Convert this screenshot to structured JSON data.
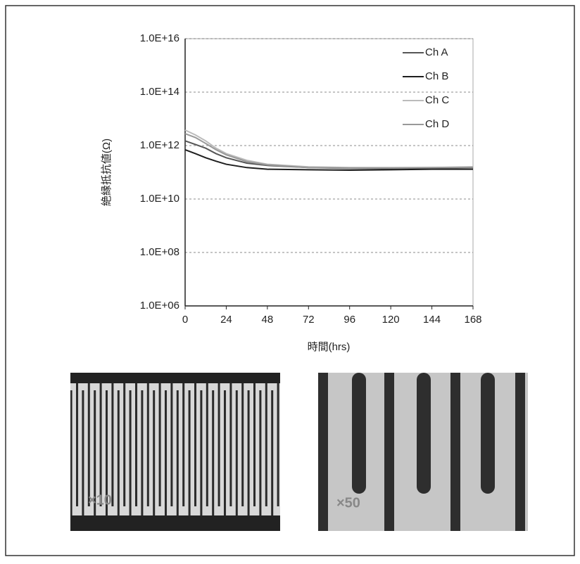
{
  "chart_data": {
    "type": "line",
    "y_label": "絶縁抵抗値(Ω)",
    "x_label": "時間(hrs)",
    "x": [
      0,
      6,
      12,
      18,
      24,
      36,
      48,
      72,
      96,
      120,
      144,
      168
    ],
    "series": [
      {
        "name": "Ch A",
        "color": "#555555",
        "values": [
          1500000000000.0,
          1100000000000.0,
          800000000000.0,
          500000000000.0,
          350000000000.0,
          220000000000.0,
          180000000000.0,
          150000000000.0,
          140000000000.0,
          140000000000.0,
          145000000000.0,
          150000000000.0
        ]
      },
      {
        "name": "Ch B",
        "color": "#1e1e1e",
        "values": [
          700000000000.0,
          500000000000.0,
          350000000000.0,
          260000000000.0,
          200000000000.0,
          150000000000.0,
          130000000000.0,
          125000000000.0,
          120000000000.0,
          125000000000.0,
          130000000000.0,
          130000000000.0
        ]
      },
      {
        "name": "Ch C",
        "color": "#bbbbbb",
        "values": [
          3800000000000.0,
          2500000000000.0,
          1500000000000.0,
          800000000000.0,
          500000000000.0,
          280000000000.0,
          200000000000.0,
          160000000000.0,
          150000000000.0,
          150000000000.0,
          150000000000.0,
          160000000000.0
        ]
      },
      {
        "name": "Ch D",
        "color": "#999999",
        "values": [
          2800000000000.0,
          2000000000000.0,
          1200000000000.0,
          700000000000.0,
          450000000000.0,
          250000000000.0,
          190000000000.0,
          150000000000.0,
          145000000000.0,
          145000000000.0,
          150000000000.0,
          155000000000.0
        ]
      }
    ],
    "xlim": [
      0,
      168
    ],
    "xticks": [
      0,
      24,
      48,
      72,
      96,
      120,
      144,
      168
    ],
    "ylim": [
      1000000.0,
      1e+16
    ],
    "yticks": [
      {
        "value": 1000000.0,
        "label": "1.0E+06"
      },
      {
        "value": 100000000.0,
        "label": "1.0E+08"
      },
      {
        "value": 10000000000.0,
        "label": "1.0E+10"
      },
      {
        "value": 1000000000000.0,
        "label": "1.0E+12"
      },
      {
        "value": 100000000000000.0,
        "label": "1.0E+14"
      },
      {
        "value": 1e+16,
        "label": "1.0E+16"
      }
    ],
    "log_y": true,
    "grid": true,
    "legend": "upper right"
  },
  "photo_labels": [
    "×10",
    "×50"
  ]
}
